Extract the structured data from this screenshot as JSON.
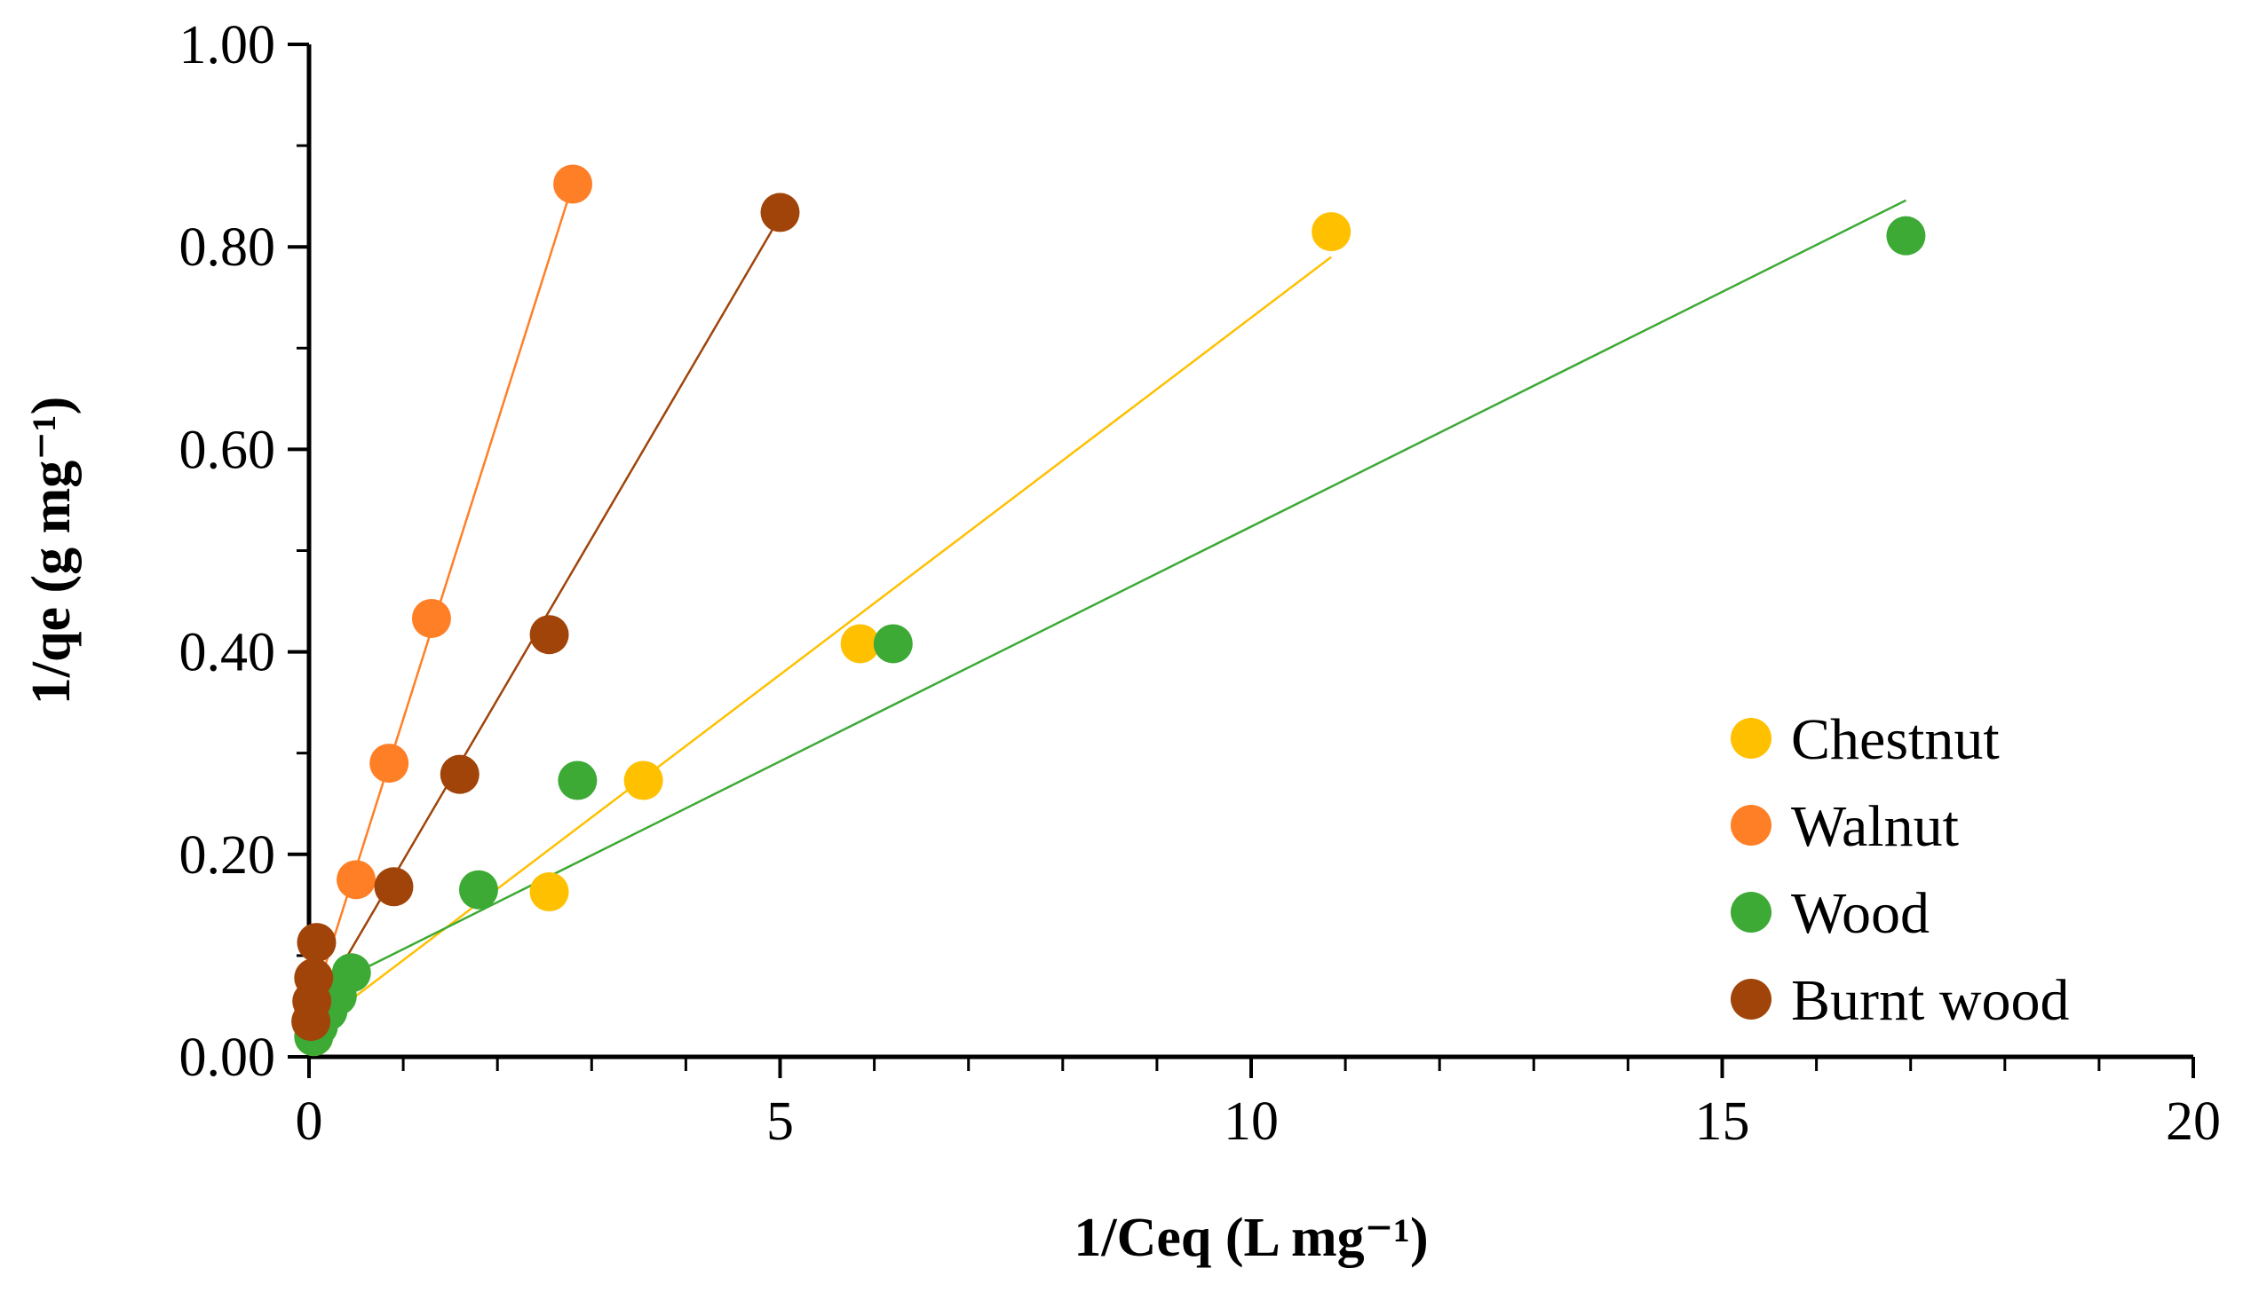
{
  "chart_data": {
    "type": "scatter",
    "title": "",
    "xlabel": "1/Ceq (L mg⁻¹)",
    "ylabel": "1/qe (g mg⁻¹)",
    "xlim": [
      0,
      20
    ],
    "ylim": [
      0,
      1.0
    ],
    "x_ticks": [
      0,
      5,
      10,
      15,
      20
    ],
    "x_tick_labels": [
      "0",
      "5",
      "10",
      "15",
      "20"
    ],
    "x_minor_step": 1,
    "y_ticks": [
      0,
      0.2,
      0.4,
      0.6,
      0.8,
      1.0
    ],
    "y_tick_labels": [
      "0.00",
      "0.20",
      "0.40",
      "0.60",
      "0.80",
      "1.00"
    ],
    "y_minor_step": 0.1,
    "grid": false,
    "legend_position": "bottom-right",
    "series": [
      {
        "name": "Chestnut",
        "color": "#FFC000",
        "x": [
          0.05,
          0.1,
          2.55,
          3.55,
          5.85,
          10.85
        ],
        "y": [
          0.02,
          0.035,
          0.163,
          0.273,
          0.408,
          0.815
        ],
        "trendline": {
          "x": [
            0.0,
            10.85
          ],
          "y": [
            0.025,
            0.79
          ]
        }
      },
      {
        "name": "Walnut",
        "color": "#FF7F27",
        "x": [
          0.05,
          0.1,
          0.5,
          0.85,
          1.3,
          2.8
        ],
        "y": [
          0.045,
          0.07,
          0.175,
          0.29,
          0.433,
          0.862
        ],
        "trendline": {
          "x": [
            0.0,
            2.8
          ],
          "y": [
            0.04,
            0.862
          ]
        }
      },
      {
        "name": "Wood",
        "color": "#3DAA35",
        "x": [
          0.05,
          0.1,
          0.2,
          0.3,
          0.45,
          1.8,
          2.85,
          6.2,
          16.95
        ],
        "y": [
          0.02,
          0.03,
          0.045,
          0.06,
          0.083,
          0.165,
          0.273,
          0.408,
          0.811
        ],
        "trendline": {
          "x": [
            0.0,
            16.95
          ],
          "y": [
            0.06,
            0.846
          ]
        }
      },
      {
        "name": "Burnt wood",
        "color": "#A0440A",
        "x": [
          0.02,
          0.03,
          0.05,
          0.08,
          0.9,
          1.6,
          2.55,
          5.0
        ],
        "y": [
          0.035,
          0.055,
          0.078,
          0.113,
          0.168,
          0.279,
          0.417,
          0.834
        ],
        "trendline": {
          "x": [
            0.0,
            5.0
          ],
          "y": [
            0.035,
            0.83
          ]
        }
      }
    ]
  }
}
